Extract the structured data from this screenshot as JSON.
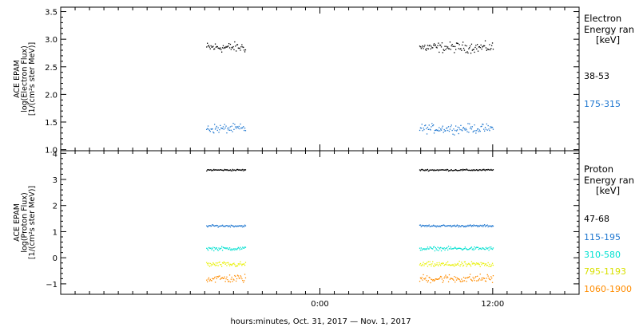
{
  "chart_data": [
    {
      "type": "scatter",
      "panel": "electron",
      "ylabel_lines": [
        "ACE EPAM",
        "log(Electron Flux)",
        "[1/(cm²s ster MeV)]"
      ],
      "yticks": [
        1.0,
        1.5,
        2.0,
        2.5,
        3.0,
        3.5
      ],
      "ytick_labels": [
        "1.0",
        "1.5",
        "2.0",
        "2.5",
        "3.0",
        "3.5"
      ],
      "ylim": [
        0.98,
        3.58
      ],
      "legend_title": [
        "Electron",
        "Energy ran",
        "[keV]"
      ],
      "series": [
        {
          "name": "38-53",
          "color": "#000000",
          "x_range_hours": [
            [
              -7.9,
              -5.2
            ],
            [
              6.9,
              12.0
            ]
          ],
          "mean": 2.86,
          "spread": 0.09
        },
        {
          "name": "175-315",
          "color": "#1f77d0",
          "x_range_hours": [
            [
              -7.9,
              -5.2
            ],
            [
              6.9,
              12.0
            ]
          ],
          "mean": 1.39,
          "spread": 0.08
        }
      ]
    },
    {
      "type": "scatter",
      "panel": "proton",
      "ylabel_lines": [
        "ACE EPAM",
        "log(Proton Flux)",
        "[1/(cm²s ster MeV)]"
      ],
      "yticks": [
        -1,
        0,
        1,
        2,
        3,
        4
      ],
      "ytick_labels": [
        "−1",
        "0",
        "1",
        "2",
        "3",
        "4"
      ],
      "ylim": [
        -1.4,
        4.1
      ],
      "legend_title": [
        "Proton",
        "Energy ran",
        "[keV]"
      ],
      "series": [
        {
          "name": "47-68",
          "color": "#000000",
          "x_range_hours": [
            [
              -7.9,
              -5.2
            ],
            [
              6.9,
              12.0
            ]
          ],
          "mean": 3.38,
          "spread": 0.03
        },
        {
          "name": "115-195",
          "color": "#1f77d0",
          "x_range_hours": [
            [
              -7.9,
              -5.2
            ],
            [
              6.9,
              12.0
            ]
          ],
          "mean": 1.24,
          "spread": 0.04
        },
        {
          "name": "310-580",
          "color": "#00e0d0",
          "x_range_hours": [
            [
              -7.9,
              -5.2
            ],
            [
              6.9,
              12.0
            ]
          ],
          "mean": 0.37,
          "spread": 0.07
        },
        {
          "name": "795-1193",
          "color": "#e8f000",
          "x_range_hours": [
            [
              -7.9,
              -5.2
            ],
            [
              6.9,
              12.0
            ]
          ],
          "mean": -0.24,
          "spread": 0.1
        },
        {
          "name": "1060-1900",
          "color": "#ff8c00",
          "x_range_hours": [
            [
              -7.9,
              -5.2
            ],
            [
              6.9,
              12.0
            ]
          ],
          "mean": -0.78,
          "spread": 0.16
        }
      ]
    }
  ],
  "xaxis": {
    "xlim_hours": [
      -18.0,
      18.0
    ],
    "major_ticks_hours": [
      0,
      12
    ],
    "major_tick_labels": [
      "0:00",
      "12:00"
    ],
    "minor_tick_step_hours": 1,
    "title": "hours:minutes, Oct. 31, 2017 — Nov.  1, 2017"
  }
}
